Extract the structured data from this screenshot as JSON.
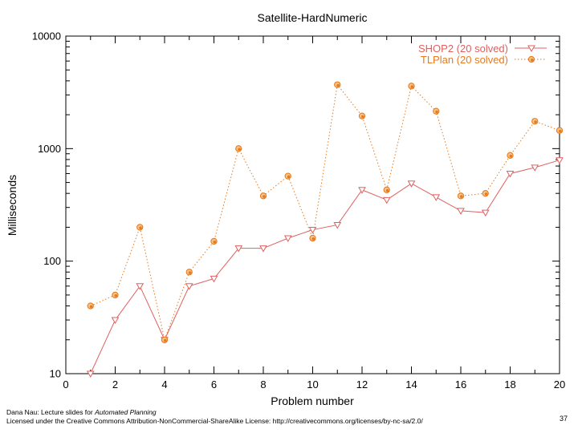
{
  "chart_data": {
    "type": "line",
    "title": "Satellite-HardNumeric",
    "xlabel": "Problem number",
    "ylabel": "Milliseconds",
    "xlim": [
      0,
      20
    ],
    "ylim": [
      10,
      10000
    ],
    "yscale": "log",
    "x_ticks": [
      0,
      2,
      4,
      6,
      8,
      10,
      12,
      14,
      16,
      18,
      20
    ],
    "y_ticks": [
      10,
      100,
      1000,
      10000
    ],
    "legend_position": "top-right",
    "x": [
      1,
      2,
      3,
      4,
      5,
      6,
      7,
      8,
      9,
      10,
      11,
      12,
      13,
      14,
      15,
      16,
      17,
      18,
      19,
      20
    ],
    "series": [
      {
        "name": "SHOP2 (20 solved)",
        "color": "#e06060",
        "marker": "triangle-down",
        "line": "solid",
        "values": [
          10,
          30,
          60,
          20,
          60,
          70,
          130,
          130,
          160,
          190,
          210,
          430,
          350,
          490,
          370,
          280,
          270,
          600,
          680,
          790
        ]
      },
      {
        "name": "TLPlan (20 solved)",
        "color": "#e87a1e",
        "marker": "circle",
        "line": "dotted",
        "values": [
          40,
          50,
          200,
          20,
          80,
          150,
          1000,
          380,
          570,
          160,
          3700,
          1950,
          430,
          3600,
          2150,
          380,
          400,
          870,
          1750,
          1450
        ]
      }
    ]
  },
  "footer": {
    "line1_prefix": "Dana Nau: Lecture slides for ",
    "line1_title": "Automated Planning",
    "line2": "Licensed under the Creative Commons Attribution-NonCommercial-ShareAlike License: http://creativecommons.org/licenses/by-nc-sa/2.0/",
    "page_number": "37"
  }
}
